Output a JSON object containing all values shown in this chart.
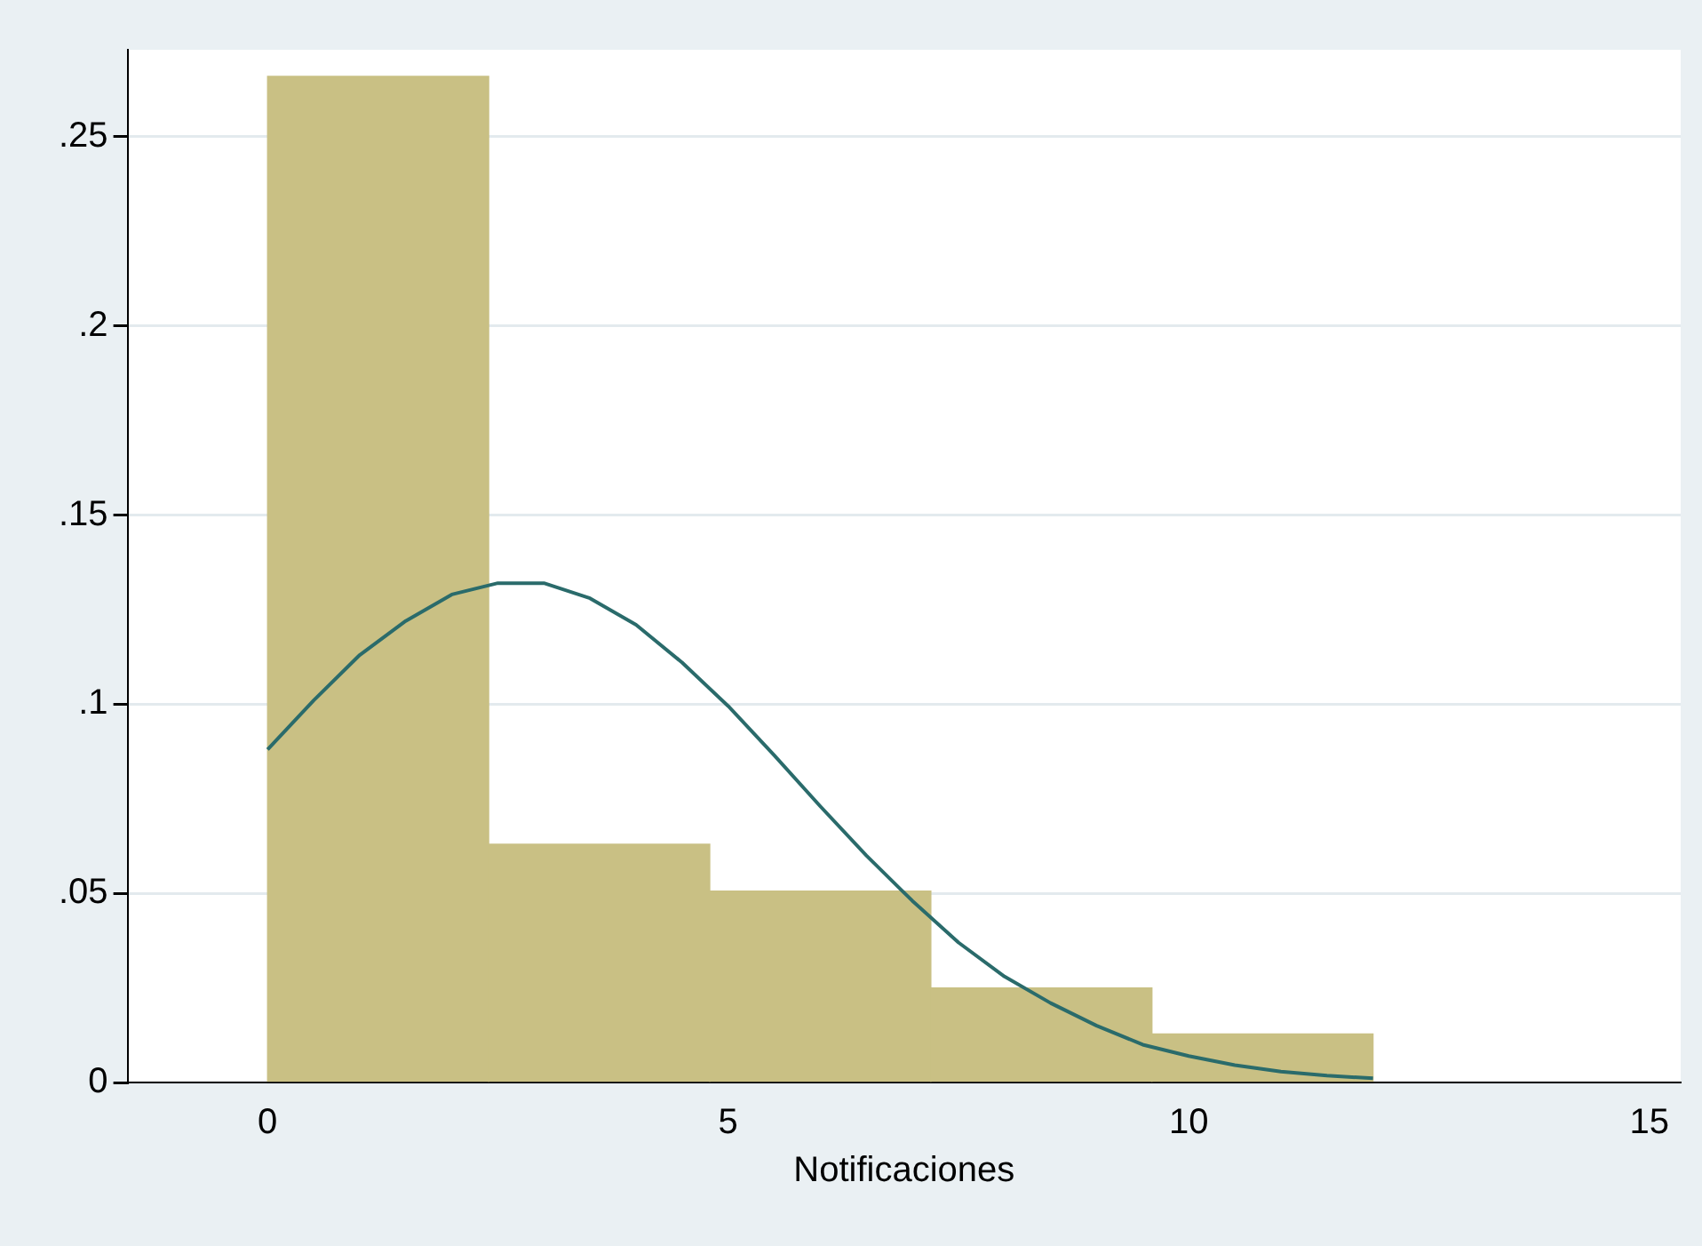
{
  "chart_data": {
    "type": "histogram",
    "xlabel": "Notificaciones",
    "bins": [
      0,
      2.4,
      4.8,
      7.2,
      9.6,
      12
    ],
    "values": [
      0.266,
      0.063,
      0.0506,
      0.025,
      0.0128
    ],
    "color": "#c9c084",
    "series": [
      {
        "type": "line",
        "color": "#2a6b6b",
        "x": [
          0,
          0.5,
          1,
          1.5,
          2,
          2.5,
          3,
          3.5,
          4,
          4.5,
          5,
          5.5,
          6,
          6.5,
          7,
          7.5,
          8,
          8.5,
          9,
          9.5,
          10,
          10.5,
          11,
          11.5,
          12
        ],
        "values": [
          0.088,
          0.101,
          0.113,
          0.122,
          0.129,
          0.132,
          0.132,
          0.128,
          0.121,
          0.111,
          0.0995,
          0.0865,
          0.073,
          0.06,
          0.048,
          0.037,
          0.028,
          0.021,
          0.015,
          0.01,
          0.007,
          0.0046,
          0.0029,
          0.0018,
          0.0011
        ]
      }
    ],
    "xlim": [
      -1.52,
      15.34
    ],
    "xticks": [
      0,
      5,
      10,
      15
    ],
    "ylim": [
      0,
      0.273
    ],
    "yticks": [
      0,
      {
        "value": 0.05,
        "label": ".05"
      },
      {
        "value": 0.1,
        "label": ".1"
      },
      {
        "value": 0.15,
        "label": ".15"
      },
      {
        "value": 0.2,
        "label": ".2"
      },
      {
        "value": 0.25,
        "label": ".25"
      }
    ],
    "grid": "y",
    "marker": "none",
    "legend": false
  }
}
